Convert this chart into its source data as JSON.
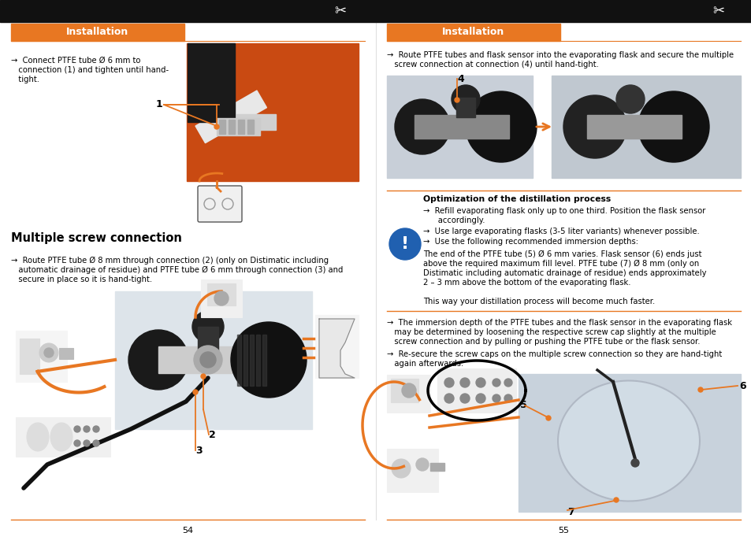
{
  "bg_color": "#ffffff",
  "black_bar_color": "#111111",
  "orange_color": "#e87722",
  "white": "#ffffff",
  "title_left": "Installation",
  "title_right": "Installation",
  "section_title": "Multiple screw connection",
  "opt_title": "Optimization of the distillation process",
  "page_num_left": "54",
  "page_num_right": "55",
  "left_bullet1_line1": "→  Connect PTFE tube Ø 6 mm to",
  "left_bullet1_line2": "   connection (1) and tighten until hand-",
  "left_bullet1_line3": "   tight.",
  "left_bullet2_line1": "→  Route PTFE tube Ø 8 mm through connection (2) (only on Distimatic including",
  "left_bullet2_line2": "   automatic drainage of residue) and PTFE tube Ø 6 mm through connection (3) and",
  "left_bullet2_line3": "   secure in place so it is hand-tight.",
  "right_bullet1_line1": "→  Route PTFE tubes and flask sensor into the evaporating flask and secure the multiple",
  "right_bullet1_line2": "   screw connection at connection (4) until hand-tight.",
  "opt_b1_l1": "→  Refill evaporating flask only up to one third. Position the flask sensor",
  "opt_b1_l2": "      accordingly.",
  "opt_b2": "→  Use large evaporating flasks (3-5 liter variants) whenever possible.",
  "opt_b3": "→  Use the following recommended immersion depths:",
  "opt_para_l1": "The end of the PTFE tube (5) Ø 6 mm varies. Flask sensor (6) ends just",
  "opt_para_l2": "above the required maximum fill level. PTFE tube (7) Ø 8 mm (only on",
  "opt_para_l3": "Distimatic including automatic drainage of residue) ends approximately",
  "opt_para_l4": "2 – 3 mm above the bottom of the evaporating flask.",
  "opt_para_l5": "",
  "opt_para_l6": "This way your distillation process will become much faster.",
  "right_b2_l1": "→  The immersion depth of the PTFE tubes and the flask sensor in the evaporating flask",
  "right_b2_l2": "   may be determined by loosening the respective screw cap slightly at the multiple",
  "right_b2_l3": "   screw connection and by pulling or pushing the PTFE tube or the flask sensor.",
  "right_b3_l1": "→  Re-secure the screw caps on the multiple screw connection so they are hand-tight",
  "right_b3_l2": "   again afterwards."
}
